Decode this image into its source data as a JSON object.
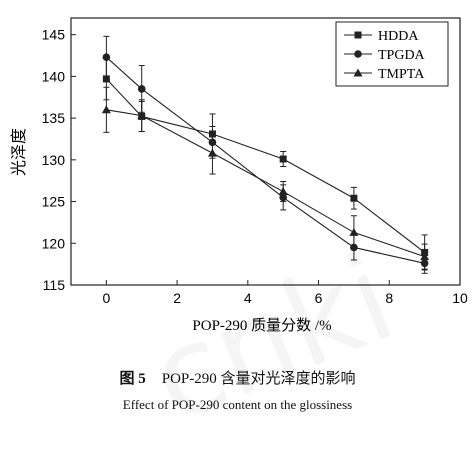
{
  "chart_data": {
    "type": "line",
    "xlabel": "POP-290 质量分数 /%",
    "ylabel": "光泽度",
    "xlim": [
      -1,
      10
    ],
    "ylim": [
      115,
      147
    ],
    "xticks": [
      0,
      2,
      4,
      6,
      8,
      10
    ],
    "yticks": [
      115,
      120,
      125,
      130,
      135,
      140,
      145
    ],
    "legend_position": "top-right",
    "grid": false,
    "series": [
      {
        "name": "HDDA",
        "marker": "square",
        "x": [
          0,
          1,
          3,
          5,
          7,
          9
        ],
        "y": [
          139.7,
          135.2,
          133.1,
          130.1,
          125.4,
          118.9
        ],
        "err": [
          2.5,
          1.8,
          2.4,
          0.9,
          1.3,
          2.1
        ]
      },
      {
        "name": "TPGDA",
        "marker": "circle",
        "x": [
          0,
          1,
          3,
          5,
          7,
          9
        ],
        "y": [
          142.3,
          138.5,
          132.1,
          125.5,
          119.5,
          117.6
        ],
        "err": [
          2.5,
          2.8,
          1.9,
          1.5,
          1.5,
          1.2
        ]
      },
      {
        "name": "TMPTA",
        "marker": "triangle",
        "x": [
          0,
          1,
          3,
          5,
          7,
          9
        ],
        "y": [
          136.0,
          135.3,
          130.8,
          126.2,
          121.3,
          118.4
        ],
        "err": [
          2.7,
          1.9,
          2.5,
          1.2,
          2.0,
          1.5
        ]
      }
    ]
  },
  "caption": {
    "fig_label": "图 5",
    "cn": "POP-290 含量对光泽度的影响",
    "en": "Effect of POP-290 content on the glossiness"
  }
}
